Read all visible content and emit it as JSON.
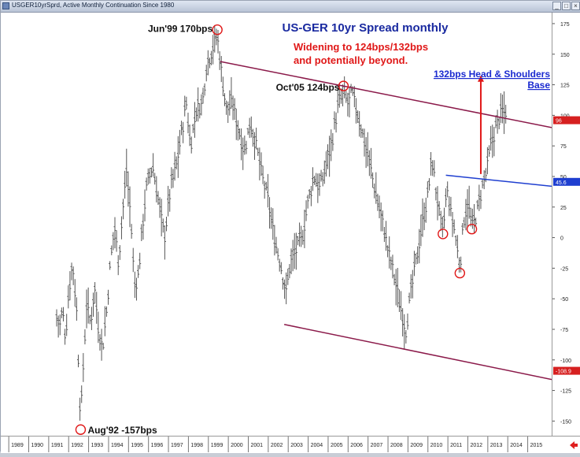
{
  "window": {
    "title": "USGER10yrSprd, Active Monthly Continuation Since 1980"
  },
  "chart_data": {
    "type": "bar",
    "title": "US-GER 10yr Spread monthly",
    "subtitle_lines": [
      "Widening to 124bps/132bps",
      "and potentially beyond."
    ],
    "annotations": [
      {
        "id": "jun99",
        "text": "Jun'99 170bps",
        "x": 1999.45,
        "y": 170
      },
      {
        "id": "oct05",
        "text": "Oct'05 124bps",
        "x": 2005.77,
        "y": 124
      },
      {
        "id": "aug92",
        "text": "Aug'92 -157bps",
        "x": 1992.6,
        "y": -157
      },
      {
        "id": "hs",
        "text_lines": [
          "132bps Head & Shoulders",
          "Base"
        ],
        "x": 2012.7,
        "y": 132
      }
    ],
    "circles": [
      {
        "x": 1999.45,
        "y": 170
      },
      {
        "x": 2005.77,
        "y": 124
      },
      {
        "x": 1992.6,
        "y": -157
      },
      {
        "x": 2010.75,
        "y": 3
      },
      {
        "x": 2011.6,
        "y": -29
      },
      {
        "x": 2012.2,
        "y": 7
      }
    ],
    "trendlines": [
      {
        "name": "upper",
        "color": "#8b1a4a",
        "from": [
          1999.6,
          144
        ],
        "to": [
          2016.2,
          90
        ]
      },
      {
        "name": "lower",
        "color": "#8b1a4a",
        "from": [
          2002.8,
          -71
        ],
        "to": [
          2016.2,
          -116
        ]
      },
      {
        "name": "neckline",
        "color": "#1f3fd0",
        "from": [
          2010.9,
          51
        ],
        "to": [
          2016.2,
          42
        ]
      }
    ],
    "arrow": {
      "color": "#e01818",
      "x": 2012.65,
      "from_y": 52,
      "to_y": 132
    },
    "price_markers": [
      {
        "value": 96,
        "label": "96",
        "color": "#d62020"
      },
      {
        "value": 45.6,
        "label": "45.6",
        "color": "#1f3fd0"
      },
      {
        "value": -108.9,
        "label": "-108.9",
        "color": "#d62020"
      }
    ],
    "yaxis": {
      "ticks": [
        175,
        150,
        125,
        100,
        75,
        50,
        25,
        0,
        -25,
        -50,
        -75,
        -100,
        -125,
        -150
      ],
      "ylim": [
        -162,
        184
      ]
    },
    "xaxis": {
      "categories": [
        "1989",
        "1990",
        "1991",
        "1992",
        "1993",
        "1994",
        "1995",
        "1996",
        "1997",
        "1998",
        "1999",
        "2000",
        "2001",
        "2002",
        "2003",
        "2004",
        "2005",
        "2006",
        "2007",
        "2008",
        "2009",
        "2010",
        "2011",
        "2012",
        "2013",
        "2014",
        "2015"
      ],
      "xlim": [
        1988.6,
        2016.2
      ]
    },
    "anchors": [
      [
        1991.4,
        -65
      ],
      [
        1991.55,
        -72
      ],
      [
        1991.7,
        -60
      ],
      [
        1991.85,
        -82
      ],
      [
        1992.0,
        -45
      ],
      [
        1992.2,
        -20
      ],
      [
        1992.4,
        -60
      ],
      [
        1992.6,
        -150
      ],
      [
        1992.75,
        -100
      ],
      [
        1992.9,
        -55
      ],
      [
        1993.1,
        -70
      ],
      [
        1993.3,
        -40
      ],
      [
        1993.5,
        -75
      ],
      [
        1993.7,
        -90
      ],
      [
        1993.9,
        -60
      ],
      [
        1994.1,
        -20
      ],
      [
        1994.3,
        10
      ],
      [
        1994.5,
        -20
      ],
      [
        1994.7,
        20
      ],
      [
        1994.9,
        55
      ],
      [
        1995.1,
        20
      ],
      [
        1995.3,
        -40
      ],
      [
        1995.5,
        -30
      ],
      [
        1995.7,
        10
      ],
      [
        1995.9,
        40
      ],
      [
        1996.2,
        60
      ],
      [
        1996.5,
        30
      ],
      [
        1996.8,
        0
      ],
      [
        1997.1,
        40
      ],
      [
        1997.4,
        60
      ],
      [
        1997.7,
        90
      ],
      [
        1997.9,
        110
      ],
      [
        1998.1,
        75
      ],
      [
        1998.4,
        105
      ],
      [
        1998.7,
        110
      ],
      [
        1998.9,
        140
      ],
      [
        1999.2,
        155
      ],
      [
        1999.45,
        165
      ],
      [
        1999.7,
        130
      ],
      [
        1999.9,
        105
      ],
      [
        2000.2,
        110
      ],
      [
        2000.5,
        90
      ],
      [
        2000.8,
        70
      ],
      [
        2001.1,
        95
      ],
      [
        2001.4,
        75
      ],
      [
        2001.7,
        50
      ],
      [
        2002.0,
        30
      ],
      [
        2002.3,
        0
      ],
      [
        2002.6,
        -20
      ],
      [
        2002.9,
        -45
      ],
      [
        2003.1,
        -20
      ],
      [
        2003.4,
        -10
      ],
      [
        2003.7,
        0
      ],
      [
        2004.0,
        30
      ],
      [
        2004.3,
        50
      ],
      [
        2004.6,
        40
      ],
      [
        2004.9,
        60
      ],
      [
        2005.2,
        80
      ],
      [
        2005.5,
        108
      ],
      [
        2005.77,
        118
      ],
      [
        2006.0,
        110
      ],
      [
        2006.2,
        118
      ],
      [
        2006.5,
        100
      ],
      [
        2006.8,
        80
      ],
      [
        2007.1,
        60
      ],
      [
        2007.4,
        35
      ],
      [
        2007.7,
        15
      ],
      [
        2008.0,
        -10
      ],
      [
        2008.3,
        -30
      ],
      [
        2008.6,
        -55
      ],
      [
        2008.9,
        -75
      ],
      [
        2009.15,
        -45
      ],
      [
        2009.4,
        -20
      ],
      [
        2009.7,
        10
      ],
      [
        2010.0,
        35
      ],
      [
        2010.2,
        65
      ],
      [
        2010.4,
        40
      ],
      [
        2010.6,
        15
      ],
      [
        2010.75,
        3
      ],
      [
        2010.95,
        40
      ],
      [
        2011.15,
        20
      ],
      [
        2011.35,
        5
      ],
      [
        2011.6,
        -25
      ],
      [
        2011.8,
        15
      ],
      [
        2012.0,
        30
      ],
      [
        2012.2,
        8
      ],
      [
        2012.45,
        20
      ],
      [
        2012.7,
        40
      ],
      [
        2012.95,
        55
      ],
      [
        2013.15,
        75
      ],
      [
        2013.4,
        90
      ],
      [
        2013.6,
        100
      ],
      [
        2013.9,
        104
      ]
    ]
  }
}
